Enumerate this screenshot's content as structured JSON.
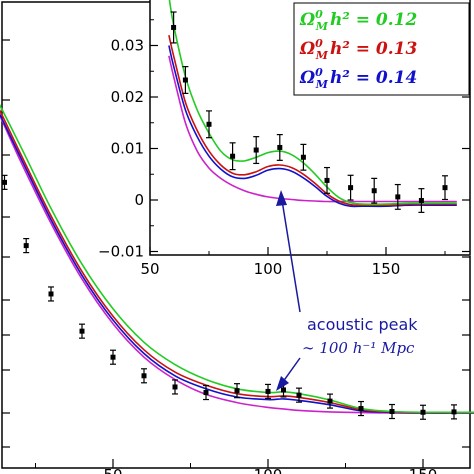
{
  "chart_data": [
    {
      "type": "line",
      "title": "",
      "xlabel": "",
      "ylabel": "",
      "xlim": [
        0,
        474
      ],
      "xticks": [
        50,
        100,
        150
      ],
      "grid": false,
      "x": [
        0,
        10,
        20,
        30,
        40,
        50,
        60,
        70,
        80,
        90,
        100,
        105,
        110,
        120,
        130,
        140,
        150,
        160,
        170,
        180,
        190,
        200
      ],
      "series": [
        {
          "name": "green",
          "color": "#22cc22",
          "values": [
            1.0,
            0.88,
            0.72,
            0.55,
            0.4,
            0.28,
            0.19,
            0.13,
            0.09,
            0.065,
            0.055,
            0.057,
            0.052,
            0.035,
            0.012,
            0.004,
            0.002,
            0.002,
            0.002,
            0.002,
            0.002,
            0.002
          ]
        },
        {
          "name": "red",
          "color": "#cc1111",
          "values": [
            1.0,
            0.87,
            0.7,
            0.53,
            0.38,
            0.26,
            0.17,
            0.11,
            0.075,
            0.052,
            0.044,
            0.046,
            0.042,
            0.028,
            0.009,
            0.003,
            0.001,
            0.001,
            0.001,
            0.001,
            0.001,
            0.001
          ]
        },
        {
          "name": "blue",
          "color": "#1111cc",
          "values": [
            1.0,
            0.86,
            0.69,
            0.52,
            0.37,
            0.25,
            0.16,
            0.1,
            0.065,
            0.043,
            0.036,
            0.038,
            0.034,
            0.022,
            0.006,
            0.002,
            0.0,
            0.0,
            0.0,
            0.0,
            0.0,
            0.0
          ]
        },
        {
          "name": "magenta",
          "color": "#cc22cc",
          "values": [
            1.0,
            0.86,
            0.68,
            0.51,
            0.36,
            0.24,
            0.15,
            0.09,
            0.05,
            0.028,
            0.015,
            0.011,
            0.007,
            0.003,
            0.001,
            0.0,
            0.0,
            0.0,
            0.0,
            0.0,
            0.0,
            0.0
          ]
        }
      ],
      "points": {
        "x": [
          0,
          8,
          15,
          22,
          30,
          40,
          50,
          60,
          70,
          80,
          90,
          100,
          105,
          110,
          120,
          130,
          140,
          150,
          160,
          170,
          180
        ],
        "y": [
          0.97,
          0.81,
          0.62,
          0.45,
          0.32,
          0.22,
          0.15,
          0.1,
          0.07,
          0.055,
          0.06,
          0.058,
          0.062,
          0.048,
          0.032,
          0.012,
          0.004,
          0.002,
          0.003,
          0.004,
          0.003
        ]
      }
    },
    {
      "type": "line",
      "title": "",
      "xlabel": "",
      "ylabel": "",
      "xlim": [
        50,
        180
      ],
      "ylim": [
        -0.01,
        0.04
      ],
      "xticks": [
        50,
        100,
        150
      ],
      "yticks": [
        -0.01,
        0,
        0.01,
        0.02,
        0.03
      ],
      "ytick_labels": [
        "−0.01",
        "0",
        "0.01",
        "0.02",
        "0.03"
      ],
      "legend_position": "top-right",
      "grid": false,
      "x": [
        58,
        60,
        65,
        70,
        75,
        80,
        85,
        90,
        95,
        100,
        105,
        110,
        115,
        120,
        125,
        130,
        135,
        140,
        150,
        160,
        170,
        180
      ],
      "series": [
        {
          "name": "Ω_M^0 h^2 = 0.12",
          "color": "#22cc22",
          "values": [
            0.04,
            0.034,
            0.024,
            0.0175,
            0.013,
            0.0095,
            0.0078,
            0.0076,
            0.0083,
            0.0092,
            0.0095,
            0.0088,
            0.0072,
            0.005,
            0.0025,
            0.0005,
            -0.0005,
            -0.0008,
            -0.0008,
            -0.0006,
            -0.0006,
            -0.0006
          ]
        },
        {
          "name": "Ω_M^0 h^2 = 0.13",
          "color": "#cc1111",
          "values": [
            0.032,
            0.028,
            0.019,
            0.0135,
            0.0095,
            0.0068,
            0.0052,
            0.0049,
            0.0055,
            0.0065,
            0.0068,
            0.0063,
            0.005,
            0.0032,
            0.0012,
            -0.0002,
            -0.0009,
            -0.001,
            -0.001,
            -0.0008,
            -0.0008,
            -0.0008
          ]
        },
        {
          "name": "Ω_M^0 h^2 = 0.14",
          "color": "#1111cc",
          "values": [
            0.03,
            0.026,
            0.0175,
            0.0123,
            0.0085,
            0.006,
            0.0045,
            0.0042,
            0.0048,
            0.0058,
            0.0061,
            0.0056,
            0.0043,
            0.0026,
            0.0007,
            -0.0006,
            -0.0012,
            -0.0012,
            -0.0012,
            -0.001,
            -0.001,
            -0.001
          ]
        },
        {
          "name": "",
          "color": "#cc22cc",
          "values": [
            0.028,
            0.024,
            0.015,
            0.0095,
            0.0062,
            0.0042,
            0.0028,
            0.0018,
            0.0011,
            0.0006,
            0.0003,
            0.0001,
            -0.0001,
            -0.0002,
            -0.0003,
            -0.0003,
            -0.0003,
            -0.0003,
            -0.0003,
            -0.0003,
            -0.0003,
            -0.0003
          ]
        }
      ],
      "points": {
        "x": [
          60,
          65,
          75,
          85,
          95,
          105,
          115,
          125,
          135,
          145,
          155,
          165,
          175
        ],
        "y": [
          0.0335,
          0.0233,
          0.0147,
          0.0085,
          0.0097,
          0.0102,
          0.0083,
          0.0038,
          0.0024,
          0.0018,
          0.0006,
          -0.0001,
          0.0024
        ],
        "err": [
          0.003,
          0.0026,
          0.0026,
          0.0026,
          0.0026,
          0.0025,
          0.0025,
          0.0025,
          0.0024,
          0.0024,
          0.0024,
          0.0023,
          0.0023
        ]
      }
    }
  ],
  "legend": [
    {
      "symbol": "Ω",
      "sup": "0",
      "sub": "M",
      "rest": "h² = 0.12",
      "color": "#22cc22"
    },
    {
      "symbol": "Ω",
      "sup": "0",
      "sub": "M",
      "rest": "h² = 0.13",
      "color": "#cc1111"
    },
    {
      "symbol": "Ω",
      "sup": "0",
      "sub": "M",
      "rest": "h² = 0.14",
      "color": "#1111cc"
    }
  ],
  "annotation": {
    "text": "acoustic peak",
    "subtext": "∼ 100 h⁻¹ Mpc",
    "color": "#1a1aa0"
  }
}
